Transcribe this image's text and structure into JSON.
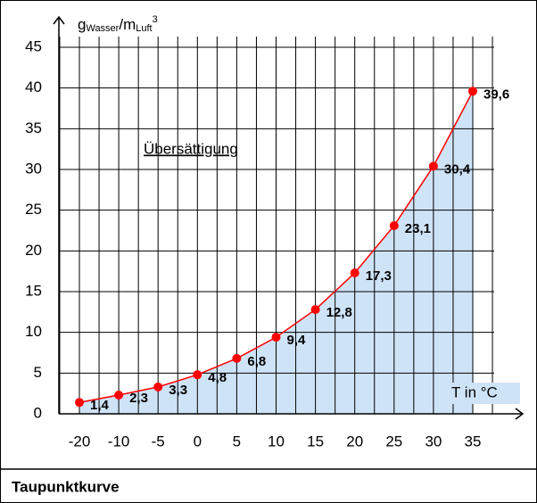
{
  "chart_data": {
    "type": "line",
    "y_label_parts": [
      "g",
      "Wasser",
      "/m",
      "Luft",
      "3"
    ],
    "x_label": "T in °C",
    "annotation": "Übersättigung",
    "caption": "Taupunktkurve",
    "categories": [
      "-20",
      "-10",
      "-5",
      "0",
      "5",
      "10",
      "15",
      "20",
      "25",
      "30",
      "35"
    ],
    "values": [
      1.4,
      2.3,
      3.3,
      4.8,
      6.8,
      9.4,
      12.8,
      17.3,
      23.1,
      30.4,
      39.6
    ],
    "value_labels": [
      "1,4",
      "2,3",
      "3,3",
      "4,8",
      "6,8",
      "9,4",
      "12,8",
      "17,3",
      "23,1",
      "30,4",
      "39,6"
    ],
    "color": "#ff0000",
    "area_color": "#cfe3f7",
    "ylim": [
      0,
      45
    ],
    "yticks": [
      0,
      5,
      10,
      15,
      20,
      25,
      30,
      35,
      40,
      45
    ],
    "grid": true
  }
}
